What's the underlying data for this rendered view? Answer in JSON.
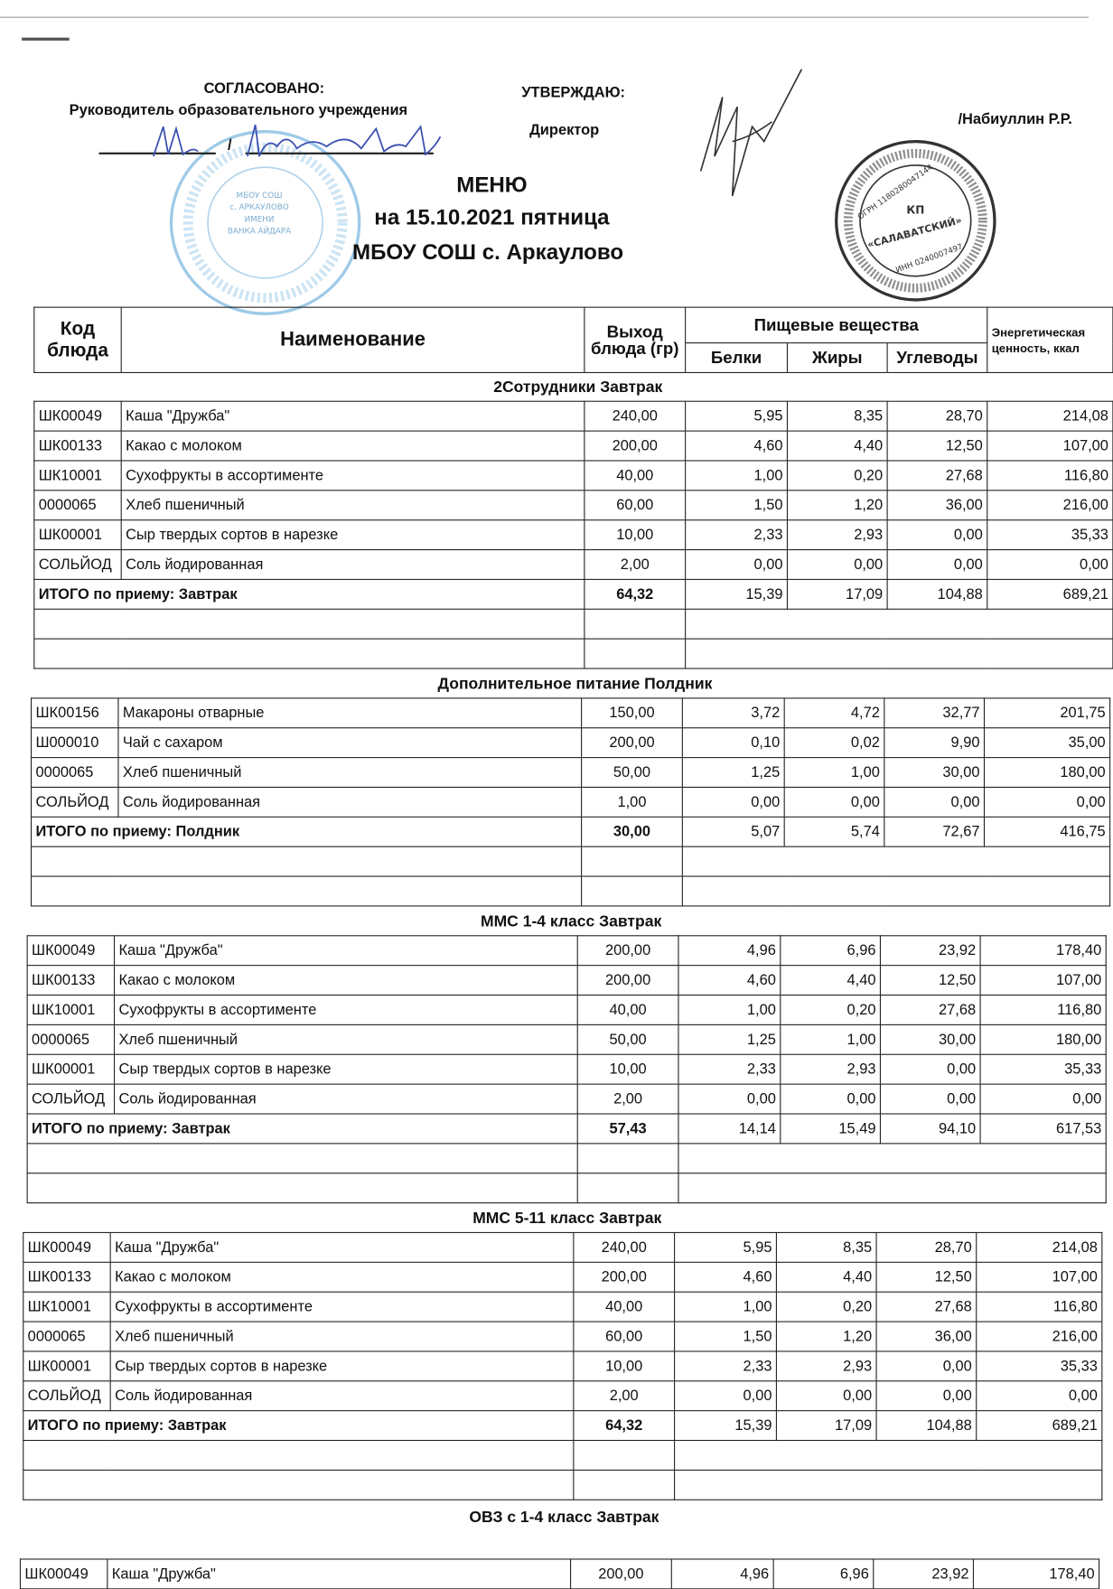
{
  "header": {
    "agreed_label": "СОГЛАСОВАНО:",
    "agreed_role": "Руководитель образовательного учреждения",
    "agreed_signature_line": "/",
    "approve_label": "УТВЕРЖДАЮ:",
    "approve_role": "Директор",
    "approve_name": "/Набиуллин Р.Р.",
    "title": "МЕНЮ",
    "date_line": "на 15.10.2021  пятница",
    "school": "МБОУ СОШ с. Аркаулово"
  },
  "stamps": {
    "blue": {
      "color": "#5fa8d8",
      "lettering": "МБОУ СОШ с. АРКАУЛОВО ИМЕНИ ВАНКА АЙДАРА"
    },
    "dark": {
      "color": "#333333",
      "center": "КП",
      "name": "«САЛАВАТСКИЙ»",
      "ogrn": "ОГРН 1180280047144",
      "inn": "ИНН 0240007497"
    }
  },
  "table_header": {
    "code": "Код блюда",
    "name": "Наименование",
    "output": "Выход блюда (гр)",
    "nutrients": "Пищевые вещества",
    "protein": "Белки",
    "fat": "Жиры",
    "carbs": "Углеводы",
    "energy": "Энергетическая ценность, ккал"
  },
  "sections": [
    {
      "title": "2Сотрудники Завтрак",
      "items": [
        {
          "code": "ШК00049",
          "name": "Каша \"Дружба\"",
          "out": "240,00",
          "p": "5,95",
          "f": "8,35",
          "c": "28,70",
          "e": "214,08"
        },
        {
          "code": "ШК00133",
          "name": "Какао с молоком",
          "out": "200,00",
          "p": "4,60",
          "f": "4,40",
          "c": "12,50",
          "e": "107,00"
        },
        {
          "code": "ШК10001",
          "name": "Сухофрукты в ассортименте",
          "out": "40,00",
          "p": "1,00",
          "f": "0,20",
          "c": "27,68",
          "e": "116,80"
        },
        {
          "code": "0000065",
          "name": "Хлеб пшеничный",
          "out": "60,00",
          "p": "1,50",
          "f": "1,20",
          "c": "36,00",
          "e": "216,00"
        },
        {
          "code": "ШК00001",
          "name": "Сыр твердых сортов в нарезке",
          "out": "10,00",
          "p": "2,33",
          "f": "2,93",
          "c": "0,00",
          "e": "35,33"
        },
        {
          "code": "СОЛЬЙОД",
          "name": "Соль йодированная",
          "out": "2,00",
          "p": "0,00",
          "f": "0,00",
          "c": "0,00",
          "e": "0,00"
        }
      ],
      "total": {
        "label": "ИТОГО по приему: Завтрак",
        "out": "64,32",
        "p": "15,39",
        "f": "17,09",
        "c": "104,88",
        "e": "689,21"
      }
    },
    {
      "title": "Дополнительное питание Полдник",
      "items": [
        {
          "code": "ШК00156",
          "name": "Макароны отварные",
          "out": "150,00",
          "p": "3,72",
          "f": "4,72",
          "c": "32,77",
          "e": "201,75"
        },
        {
          "code": "Ш000010",
          "name": "Чай с сахаром",
          "out": "200,00",
          "p": "0,10",
          "f": "0,02",
          "c": "9,90",
          "e": "35,00"
        },
        {
          "code": "0000065",
          "name": "Хлеб пшеничный",
          "out": "50,00",
          "p": "1,25",
          "f": "1,00",
          "c": "30,00",
          "e": "180,00"
        },
        {
          "code": "СОЛЬЙОД",
          "name": "Соль йодированная",
          "out": "1,00",
          "p": "0,00",
          "f": "0,00",
          "c": "0,00",
          "e": "0,00"
        }
      ],
      "total": {
        "label": "ИТОГО по приему: Полдник",
        "out": "30,00",
        "p": "5,07",
        "f": "5,74",
        "c": "72,67",
        "e": "416,75"
      }
    },
    {
      "title": "ММС 1-4 класс Завтрак",
      "items": [
        {
          "code": "ШК00049",
          "name": "Каша \"Дружба\"",
          "out": "200,00",
          "p": "4,96",
          "f": "6,96",
          "c": "23,92",
          "e": "178,40"
        },
        {
          "code": "ШК00133",
          "name": "Какао с молоком",
          "out": "200,00",
          "p": "4,60",
          "f": "4,40",
          "c": "12,50",
          "e": "107,00"
        },
        {
          "code": "ШК10001",
          "name": "Сухофрукты в ассортименте",
          "out": "40,00",
          "p": "1,00",
          "f": "0,20",
          "c": "27,68",
          "e": "116,80"
        },
        {
          "code": "0000065",
          "name": "Хлеб пшеничный",
          "out": "50,00",
          "p": "1,25",
          "f": "1,00",
          "c": "30,00",
          "e": "180,00"
        },
        {
          "code": "ШК00001",
          "name": "Сыр твердых сортов в нарезке",
          "out": "10,00",
          "p": "2,33",
          "f": "2,93",
          "c": "0,00",
          "e": "35,33"
        },
        {
          "code": "СОЛЬЙОД",
          "name": "Соль йодированная",
          "out": "2,00",
          "p": "0,00",
          "f": "0,00",
          "c": "0,00",
          "e": "0,00"
        }
      ],
      "total": {
        "label": "ИТОГО по приему: Завтрак",
        "out": "57,43",
        "p": "14,14",
        "f": "15,49",
        "c": "94,10",
        "e": "617,53"
      }
    },
    {
      "title": "ММС 5-11 класс Завтрак",
      "items": [
        {
          "code": "ШК00049",
          "name": "Каша \"Дружба\"",
          "out": "240,00",
          "p": "5,95",
          "f": "8,35",
          "c": "28,70",
          "e": "214,08"
        },
        {
          "code": "ШК00133",
          "name": "Какао с молоком",
          "out": "200,00",
          "p": "4,60",
          "f": "4,40",
          "c": "12,50",
          "e": "107,00"
        },
        {
          "code": "ШК10001",
          "name": "Сухофрукты в ассортименте",
          "out": "40,00",
          "p": "1,00",
          "f": "0,20",
          "c": "27,68",
          "e": "116,80"
        },
        {
          "code": "0000065",
          "name": "Хлеб пшеничный",
          "out": "60,00",
          "p": "1,50",
          "f": "1,20",
          "c": "36,00",
          "e": "216,00"
        },
        {
          "code": "ШК00001",
          "name": "Сыр твердых сортов в нарезке",
          "out": "10,00",
          "p": "2,33",
          "f": "2,93",
          "c": "0,00",
          "e": "35,33"
        },
        {
          "code": "СОЛЬЙОД",
          "name": "Соль йодированная",
          "out": "2,00",
          "p": "0,00",
          "f": "0,00",
          "c": "0,00",
          "e": "0,00"
        }
      ],
      "total": {
        "label": "ИТОГО по приему: Завтрак",
        "out": "64,32",
        "p": "15,39",
        "f": "17,09",
        "c": "104,88",
        "e": "689,21"
      }
    },
    {
      "title": "ОВЗ с 1-4 класс Завтрак",
      "items": [
        {
          "code": "ШК00049",
          "name": "Каша \"Дружба\"",
          "out": "200,00",
          "p": "4,96",
          "f": "6,96",
          "c": "23,92",
          "e": "178,40"
        }
      ]
    }
  ]
}
